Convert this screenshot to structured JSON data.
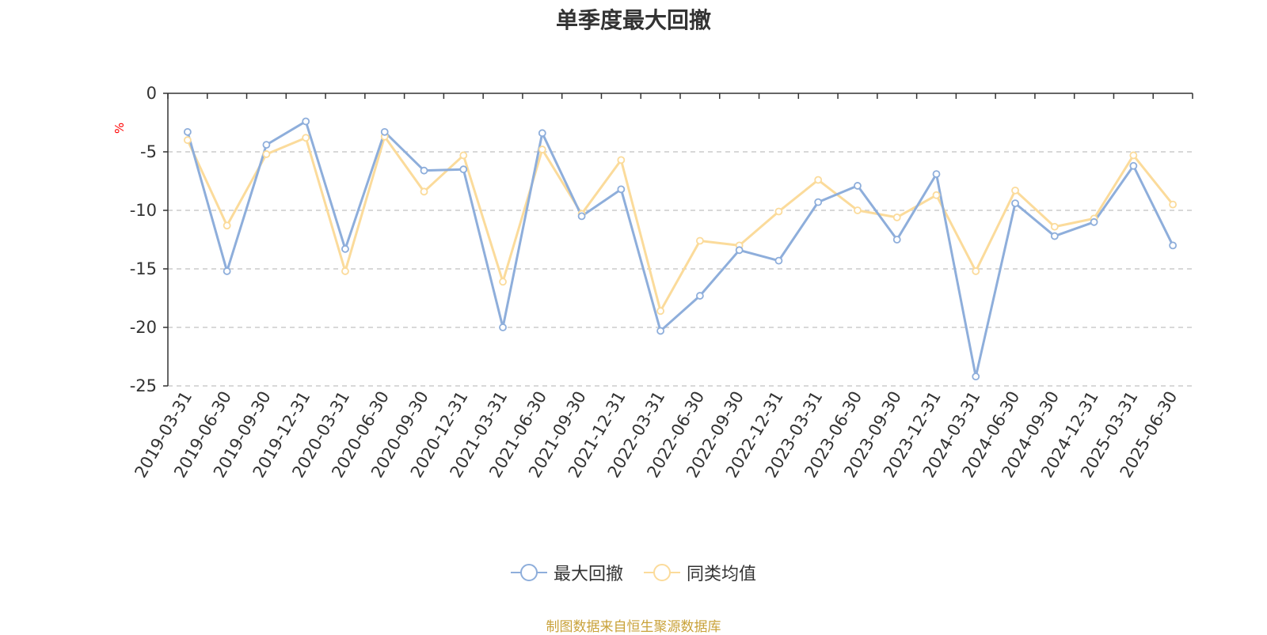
{
  "chart_data": {
    "type": "line",
    "title": "单季度最大回撤",
    "ylabel": "%",
    "ylim": [
      -25,
      0
    ],
    "yticks": [
      0,
      -5,
      -10,
      -15,
      -20,
      -25
    ],
    "grid": "horizontal-dashed",
    "legend_position": "bottom-center",
    "categories": [
      "2019-03-31",
      "2019-06-30",
      "2019-09-30",
      "2019-12-31",
      "2020-03-31",
      "2020-06-30",
      "2020-09-30",
      "2020-12-31",
      "2021-03-31",
      "2021-06-30",
      "2021-09-30",
      "2021-12-31",
      "2022-03-31",
      "2022-06-30",
      "2022-09-30",
      "2022-12-31",
      "2023-03-31",
      "2023-06-30",
      "2023-09-30",
      "2023-12-31",
      "2024-03-31",
      "2024-06-30",
      "2024-09-30",
      "2024-12-31",
      "2025-03-31",
      "2025-06-30"
    ],
    "series": [
      {
        "name": "最大回撤",
        "color": "#8eaedb",
        "values": [
          -3.3,
          -15.2,
          -4.4,
          -2.4,
          -13.3,
          -3.3,
          -6.6,
          -6.5,
          -20.0,
          -3.4,
          -10.5,
          -8.2,
          -20.3,
          -17.3,
          -13.4,
          -14.3,
          -9.3,
          -7.9,
          -12.5,
          -6.9,
          -24.2,
          -9.4,
          -12.2,
          -11.0,
          -6.2,
          -13.0
        ]
      },
      {
        "name": "同类均值",
        "color": "#fbdb9b",
        "values": [
          -4.0,
          -11.3,
          -5.2,
          -3.8,
          -15.2,
          -3.7,
          -8.4,
          -5.3,
          -16.1,
          -4.8,
          -10.3,
          -5.7,
          -18.6,
          -12.6,
          -13.0,
          -10.1,
          -7.4,
          -10.0,
          -10.6,
          -8.7,
          -15.2,
          -8.3,
          -11.4,
          -10.7,
          -5.3,
          -9.5
        ]
      }
    ]
  },
  "source": "制图数据来自恒生聚源数据库"
}
